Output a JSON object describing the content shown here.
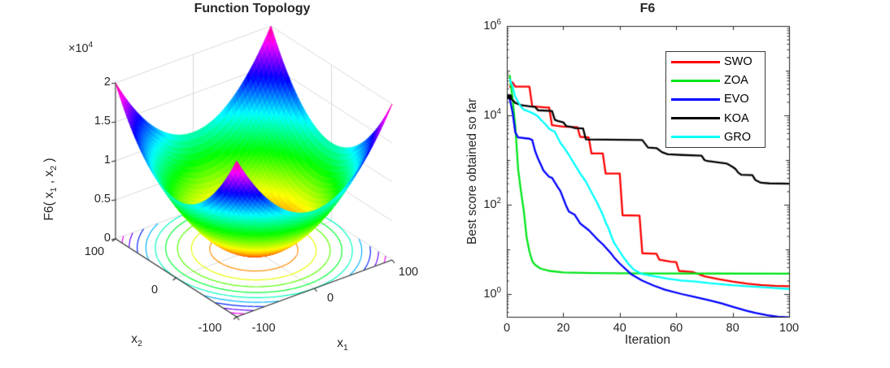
{
  "style": {
    "background": "#ffffff",
    "axis_color": "#262626",
    "grid_color": "#d9d9d9",
    "legend_border": "#3a3a3a"
  },
  "labels": {
    "multiplier": {
      "base": "×10",
      "exp": "4"
    },
    "zlabel": {
      "p1": "F6( x",
      "s1": "1",
      "p2": " , x",
      "s2": "2",
      "p3": " )"
    },
    "x1name": {
      "base": "x",
      "sub": "1"
    },
    "x2name": {
      "base": "x",
      "sub": "2"
    }
  },
  "chart_data": [
    {
      "type": "surface3d",
      "title": "Function Topology",
      "zlabel": "F6( x_1 , x_2 )",
      "xlabel": "x_1",
      "ylabel": "x_2",
      "function": "z = x1^2 + x2^2",
      "x_range": [
        -100,
        100
      ],
      "y_range": [
        -100,
        100
      ],
      "z_range": [
        0,
        20000
      ],
      "z_ticks": [
        0,
        5000,
        10000,
        15000,
        20000
      ],
      "z_tick_labels": [
        "0",
        "0.5",
        "1",
        "1.5",
        "2"
      ],
      "z_multiplier": "×10^4",
      "x_tick_labels": [
        "-100",
        "0",
        "100"
      ],
      "y_tick_labels": [
        "-100",
        "0",
        "100"
      ],
      "colormap": "hsv",
      "contour_levels": [
        2000,
        4000,
        6000,
        8000,
        10000,
        12000,
        14000,
        16000,
        18000,
        19500
      ],
      "grid": true
    },
    {
      "type": "line",
      "title": "F6",
      "xlabel": "Iteration",
      "ylabel": "Best score obtained so far",
      "xlim": [
        0,
        100
      ],
      "x_ticks": [
        0,
        20,
        40,
        60,
        80,
        100
      ],
      "y_scale": "log",
      "y_tick_exponents": [
        6,
        4,
        2,
        0
      ],
      "ylim": [
        0.3,
        1000000
      ],
      "grid": false,
      "legend_position": "northeast",
      "series": [
        {
          "name": "SWO",
          "color": "#ff0000",
          "marker_start": false,
          "points": [
            [
              1,
              42000
            ],
            [
              2,
              55000
            ],
            [
              3,
              44000
            ],
            [
              8,
              44000
            ],
            [
              9,
              16000
            ],
            [
              14,
              15000
            ],
            [
              15,
              15000
            ],
            [
              16,
              6000
            ],
            [
              20,
              5600
            ],
            [
              25,
              5400
            ],
            [
              26,
              3300
            ],
            [
              29,
              3200
            ],
            [
              30,
              1400
            ],
            [
              34,
              1400
            ],
            [
              35,
              500
            ],
            [
              40,
              500
            ],
            [
              41,
              58
            ],
            [
              47,
              57
            ],
            [
              48,
              8.2
            ],
            [
              53,
              8
            ],
            [
              54,
              5.9
            ],
            [
              58,
              5.3
            ],
            [
              60,
              5.2
            ],
            [
              61,
              3.3
            ],
            [
              66,
              3.1
            ],
            [
              70,
              2.5
            ],
            [
              75,
              2.15
            ],
            [
              80,
              1.9
            ],
            [
              85,
              1.72
            ],
            [
              90,
              1.6
            ],
            [
              95,
              1.53
            ],
            [
              100,
              1.5
            ]
          ]
        },
        {
          "name": "ZOA",
          "color": "#00e61a",
          "marker_start": false,
          "points": [
            [
              1,
              80000
            ],
            [
              2,
              25000
            ],
            [
              3,
              5800
            ],
            [
              4,
              630
            ],
            [
              5,
              200
            ],
            [
              6,
              74
            ],
            [
              7,
              19
            ],
            [
              8,
              9
            ],
            [
              9,
              5.5
            ],
            [
              10,
              4.5
            ],
            [
              12,
              3.7
            ],
            [
              15,
              3.3
            ],
            [
              20,
              3.05
            ],
            [
              30,
              2.95
            ],
            [
              50,
              2.9
            ],
            [
              75,
              2.88
            ],
            [
              100,
              2.86
            ]
          ]
        },
        {
          "name": "EVO",
          "color": "#0000ff",
          "marker_start": false,
          "points": [
            [
              1,
              24000
            ],
            [
              2,
              12000
            ],
            [
              3,
              4200
            ],
            [
              4,
              3200
            ],
            [
              8,
              3000
            ],
            [
              9,
              2800
            ],
            [
              10,
              1600
            ],
            [
              11,
              1100
            ],
            [
              13,
              580
            ],
            [
              15,
              420
            ],
            [
              16,
              400
            ],
            [
              18,
              250
            ],
            [
              19,
              200
            ],
            [
              21,
              95
            ],
            [
              22,
              70
            ],
            [
              24,
              60
            ],
            [
              26,
              38
            ],
            [
              29,
              27
            ],
            [
              32,
              17
            ],
            [
              34,
              13
            ],
            [
              37,
              8
            ],
            [
              38,
              6.6
            ],
            [
              40,
              4.8
            ],
            [
              44,
              2.8
            ],
            [
              48,
              2.0
            ],
            [
              52,
              1.55
            ],
            [
              56,
              1.25
            ],
            [
              62,
              1.0
            ],
            [
              67,
              0.85
            ],
            [
              72,
              0.72
            ],
            [
              76,
              0.62
            ],
            [
              80,
              0.52
            ],
            [
              83,
              0.46
            ],
            [
              85,
              0.42
            ],
            [
              88,
              0.38
            ],
            [
              92,
              0.34
            ],
            [
              96,
              0.31
            ],
            [
              100,
              0.3
            ]
          ]
        },
        {
          "name": "KOA",
          "color": "#000000",
          "marker_start": true,
          "points": [
            [
              1,
              26000
            ],
            [
              2,
              22000
            ],
            [
              3,
              19000
            ],
            [
              5,
              17000
            ],
            [
              8,
              16000
            ],
            [
              10,
              15500
            ],
            [
              11,
              13000
            ],
            [
              16,
              12500
            ],
            [
              17,
              8000
            ],
            [
              18,
              7500
            ],
            [
              20,
              7000
            ],
            [
              21,
              5800
            ],
            [
              23,
              5500
            ],
            [
              24,
              5200
            ],
            [
              27,
              5100
            ],
            [
              28,
              2900
            ],
            [
              48,
              2800
            ],
            [
              50,
              1900
            ],
            [
              53,
              1850
            ],
            [
              55,
              1500
            ],
            [
              57,
              1350
            ],
            [
              62,
              1300
            ],
            [
              69,
              1250
            ],
            [
              70,
              1000
            ],
            [
              71,
              950
            ],
            [
              78,
              830
            ],
            [
              80,
              700
            ],
            [
              81,
              630
            ],
            [
              82,
              520
            ],
            [
              83,
              470
            ],
            [
              87,
              460
            ],
            [
              88,
              360
            ],
            [
              90,
              310
            ],
            [
              93,
              300
            ],
            [
              100,
              295
            ]
          ]
        },
        {
          "name": "GRO",
          "color": "#00ffff",
          "marker_start": false,
          "points": [
            [
              1,
              65000
            ],
            [
              2,
              45000
            ],
            [
              3,
              26000
            ],
            [
              4,
              20000
            ],
            [
              5,
              15500
            ],
            [
              6,
              13500
            ],
            [
              8,
              12000
            ],
            [
              10,
              10500
            ],
            [
              11,
              9500
            ],
            [
              12,
              8000
            ],
            [
              13,
              7000
            ],
            [
              14,
              6000
            ],
            [
              15,
              5000
            ],
            [
              16,
              4600
            ],
            [
              17,
              4300
            ],
            [
              18,
              3200
            ],
            [
              19,
              2400
            ],
            [
              20,
              2000
            ],
            [
              22,
              1300
            ],
            [
              24,
              800
            ],
            [
              26,
              500
            ],
            [
              28,
              330
            ],
            [
              30,
              190
            ],
            [
              32,
              110
            ],
            [
              34,
              60
            ],
            [
              35,
              40
            ],
            [
              36,
              30
            ],
            [
              37,
              20
            ],
            [
              38,
              14
            ],
            [
              40,
              9
            ],
            [
              41,
              7.1
            ],
            [
              43,
              4.8
            ],
            [
              45,
              3.5
            ],
            [
              48,
              2.8
            ],
            [
              50,
              2.65
            ],
            [
              54,
              2.4
            ],
            [
              57,
              2.2
            ],
            [
              62,
              2.0
            ],
            [
              67,
              1.9
            ],
            [
              72,
              1.75
            ],
            [
              79,
              1.6
            ],
            [
              85,
              1.5
            ],
            [
              92,
              1.4
            ],
            [
              100,
              1.3
            ]
          ]
        }
      ]
    }
  ]
}
